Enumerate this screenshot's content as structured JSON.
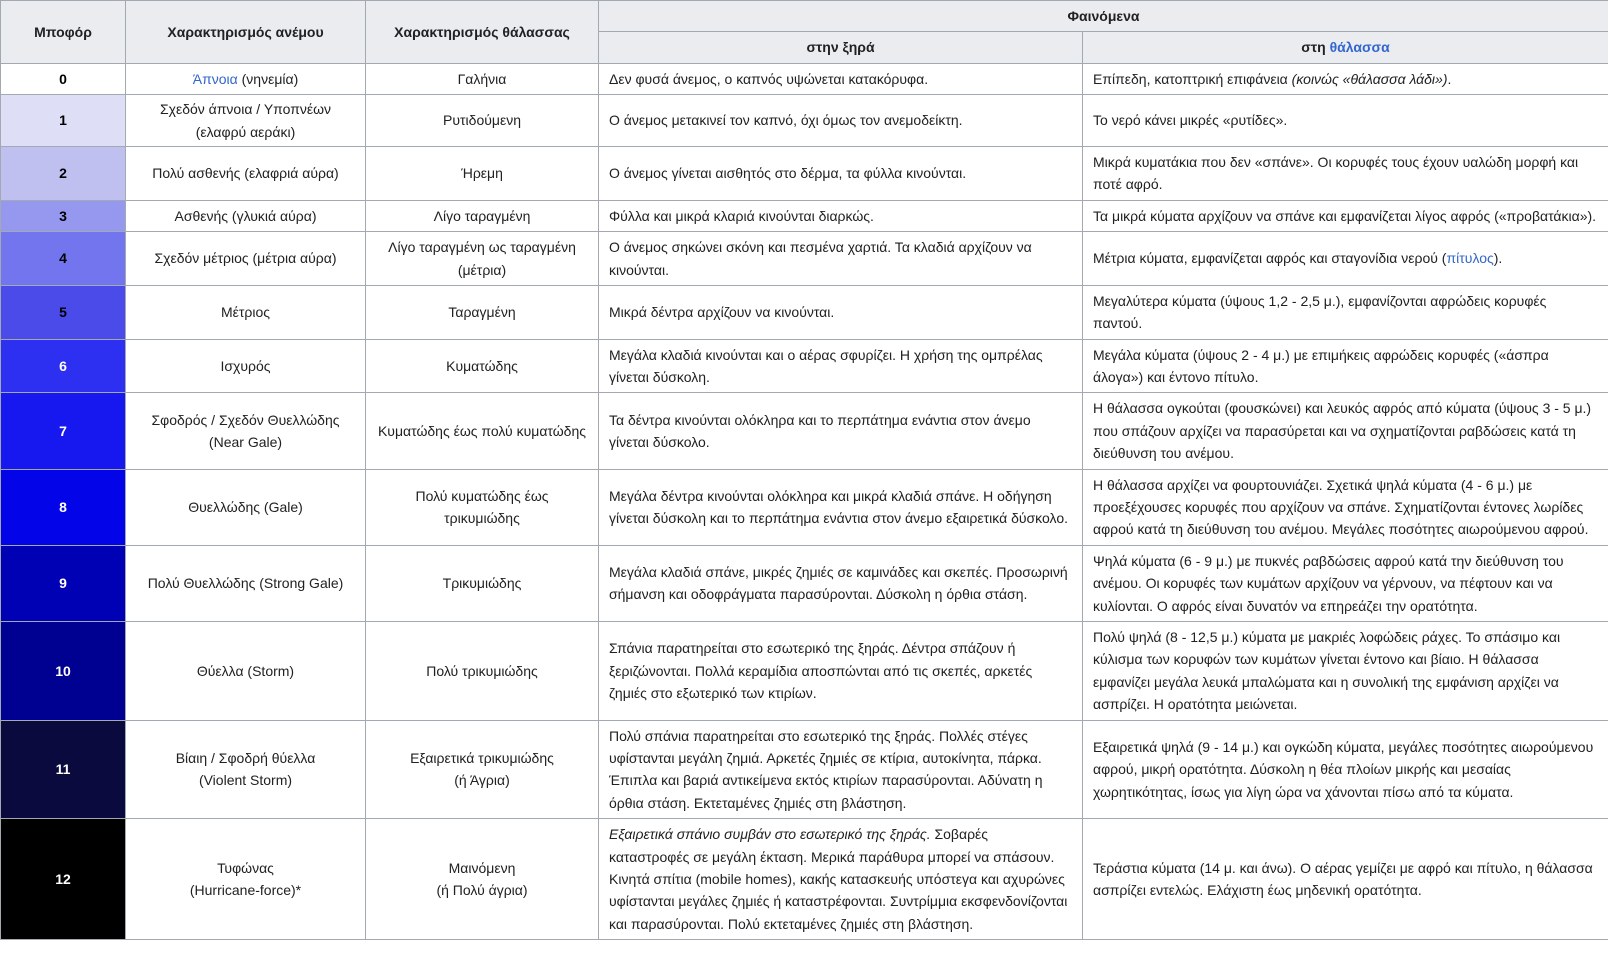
{
  "table": {
    "link_color": "#3366cc",
    "border_color": "#a2a9b1",
    "header_bg": "#eaecf0",
    "header": {
      "beaufort": "Μποφόρ",
      "wind": "Χαρακτηρισμός ανέμου",
      "sea": "Χαρακτηρισμός θάλασσας",
      "phenomena": "Φαινόμενα",
      "sub_land": "στην ξηρά",
      "sub_sea_prefix": "στη",
      "sub_sea_link": "θάλασσα"
    },
    "rows": [
      {
        "n": "0",
        "bg": "#ffffff",
        "fg": "#000000",
        "wind": [
          {
            "s": "link",
            "v": "Άπνοια",
            "name": "apnoia-link"
          },
          {
            "s": "text",
            "v": " (νηνεμία)"
          }
        ],
        "sea": [
          {
            "s": "text",
            "v": "Γαλήνια"
          }
        ],
        "land": [
          {
            "s": "text",
            "v": "Δεν φυσά άνεμος, ο καπνός υψώνεται κατακόρυφα."
          }
        ],
        "seadesc": [
          {
            "s": "text",
            "v": "Επίπεδη, κατοπτρική επιφάνεια "
          },
          {
            "s": "em",
            "v": "(κοινώς «θάλασσα λάδι»)"
          },
          {
            "s": "text",
            "v": "."
          }
        ]
      },
      {
        "n": "1",
        "bg": "#dedff7",
        "fg": "#000000",
        "wind": [
          {
            "s": "text",
            "v": "Σχεδόν άπνοια / Υποπνέων (ελαφρύ αεράκι)"
          }
        ],
        "sea": [
          {
            "s": "text",
            "v": "Ρυτιδούμενη"
          }
        ],
        "land": [
          {
            "s": "text",
            "v": "Ο άνεμος μετακινεί τον καπνό, όχι όμως τον ανεμοδείκτη."
          }
        ],
        "seadesc": [
          {
            "s": "text",
            "v": "Το νερό κάνει μικρές «ρυτίδες»."
          }
        ]
      },
      {
        "n": "2",
        "bg": "#bfc0ef",
        "fg": "#000000",
        "wind": [
          {
            "s": "text",
            "v": "Πολύ ασθενής (ελαφριά αύρα)"
          }
        ],
        "sea": [
          {
            "s": "text",
            "v": "Ήρεμη"
          }
        ],
        "land": [
          {
            "s": "text",
            "v": "Ο άνεμος γίνεται αισθητός στο δέρμα, τα φύλλα κινούνται."
          }
        ],
        "seadesc": [
          {
            "s": "text",
            "v": "Μικρά κυματάκια που δεν «σπάνε». Οι κορυφές τους έχουν υαλώδη μορφή και ποτέ αφρό."
          }
        ]
      },
      {
        "n": "3",
        "bg": "#9697ee",
        "fg": "#000000",
        "wind": [
          {
            "s": "text",
            "v": "Ασθενής (γλυκιά αύρα)"
          }
        ],
        "sea": [
          {
            "s": "text",
            "v": "Λίγο ταραγμένη"
          }
        ],
        "land": [
          {
            "s": "text",
            "v": "Φύλλα και μικρά κλαριά κινούνται διαρκώς."
          }
        ],
        "seadesc": [
          {
            "s": "text",
            "v": "Τα μικρά κύματα αρχίζουν να σπάνε και εμφανίζεται λίγος αφρός («προβατάκια»)."
          }
        ]
      },
      {
        "n": "4",
        "bg": "#7375ee",
        "fg": "#000000",
        "wind": [
          {
            "s": "text",
            "v": "Σχεδόν μέτριος (μέτρια αύρα)"
          }
        ],
        "sea": [
          {
            "s": "text",
            "v": "Λίγο ταραγμένη ως ταραγμένη\n(μέτρια)"
          }
        ],
        "land": [
          {
            "s": "text",
            "v": "Ο άνεμος σηκώνει σκόνη και πεσμένα χαρτιά. Τα κλαδιά αρχίζουν να κινούνται."
          }
        ],
        "seadesc": [
          {
            "s": "text",
            "v": "Μέτρια κύματα, εμφανίζεται αφρός και σταγονίδια νερού ("
          },
          {
            "s": "link",
            "v": "πίτυλος",
            "name": "pitylos-link"
          },
          {
            "s": "text",
            "v": ")."
          }
        ]
      },
      {
        "n": "5",
        "bg": "#4a4be8",
        "fg": "#000000",
        "wind": [
          {
            "s": "text",
            "v": "Μέτριος"
          }
        ],
        "sea": [
          {
            "s": "text",
            "v": "Ταραγμένη"
          }
        ],
        "land": [
          {
            "s": "text",
            "v": "Μικρά δέντρα αρχίζουν να κινούνται."
          }
        ],
        "seadesc": [
          {
            "s": "text",
            "v": "Μεγαλύτερα κύματα (ύψους 1,2 - 2,5 μ.), εμφανίζονται αφρώδεις κορυφές παντού."
          }
        ]
      },
      {
        "n": "6",
        "bg": "#2e30f1",
        "fg": "#ffffff",
        "wind": [
          {
            "s": "text",
            "v": "Ισχυρός"
          }
        ],
        "sea": [
          {
            "s": "text",
            "v": "Κυματώδης"
          }
        ],
        "land": [
          {
            "s": "text",
            "v": "Μεγάλα κλαδιά κινούνται και ο αέρας σφυρίζει. Η χρήση της ομπρέλας γίνεται δύσκολη."
          }
        ],
        "seadesc": [
          {
            "s": "text",
            "v": "Μεγάλα κύματα (ύψους 2 - 4 μ.) με επιμήκεις αφρώδεις κορυφές («άσπρα άλογα») και έντονο πίτυλο."
          }
        ]
      },
      {
        "n": "7",
        "bg": "#1718f0",
        "fg": "#ffffff",
        "wind": [
          {
            "s": "text",
            "v": "Σφοδρός / Σχεδόν Θυελλώδης\n(Near Gale)"
          }
        ],
        "sea": [
          {
            "s": "text",
            "v": "Κυματώδης έως πολύ κυματώδης"
          }
        ],
        "land": [
          {
            "s": "text",
            "v": "Τα δέντρα κινούνται ολόκληρα και το περπάτημα ενάντια στον άνεμο γίνεται δύσκολο."
          }
        ],
        "seadesc": [
          {
            "s": "text",
            "v": "Η θάλασσα ογκούται (φουσκώνει) και λευκός αφρός από κύματα (ύψους 3 - 5 μ.) που σπάζουν αρχίζει να παρασύρεται και να σχηματίζονται ραβδώσεις κατά τη διεύθυνση του ανέμου."
          }
        ]
      },
      {
        "n": "8",
        "bg": "#0404e8",
        "fg": "#ffffff",
        "wind": [
          {
            "s": "text",
            "v": "Θυελλώδης (Gale)"
          }
        ],
        "sea": [
          {
            "s": "text",
            "v": "Πολύ κυματώδης έως τρικυμιώδης"
          }
        ],
        "land": [
          {
            "s": "text",
            "v": "Μεγάλα δέντρα κινούνται ολόκληρα και μικρά κλαδιά σπάνε. Η οδήγηση γίνεται δύσκολη και το περπάτημα ενάντια στον άνεμο εξαιρετικά δύσκολο."
          }
        ],
        "seadesc": [
          {
            "s": "text",
            "v": "Η θάλασσα αρχίζει να φουρτουνιάζει. Σχετικά ψηλά κύματα (4 - 6 μ.) με προεξέχουσες κορυφές που αρχίζουν να σπάνε. Σχηματίζονται έντονες λωρίδες αφρού κατά τη διεύθυνση του ανέμου. Μεγάλες ποσότητες αιωρούμενου αφρού."
          }
        ]
      },
      {
        "n": "9",
        "bg": "#0000b5",
        "fg": "#ffffff",
        "wind": [
          {
            "s": "text",
            "v": "Πολύ Θυελλώδης (Strong Gale)"
          }
        ],
        "sea": [
          {
            "s": "text",
            "v": "Τρικυμιώδης"
          }
        ],
        "land": [
          {
            "s": "text",
            "v": "Μεγάλα κλαδιά σπάνε, μικρές ζημιές σε καμινάδες και σκεπές. Προσωρινή σήμανση και οδοφράγματα παρασύρονται. Δύσκολη η όρθια στάση."
          }
        ],
        "seadesc": [
          {
            "s": "text",
            "v": "Ψηλά κύματα (6 - 9 μ.) με πυκνές ραβδώσεις αφρού κατά την διεύθυνση του ανέμου. Οι κορυφές των κυμάτων αρχίζουν να γέρνουν, να πέφτουν και να κυλίονται. Ο αφρός είναι δυνατόν να επηρεάζει την ορατότητα."
          }
        ]
      },
      {
        "n": "10",
        "bg": "#000091",
        "fg": "#ffffff",
        "wind": [
          {
            "s": "text",
            "v": "Θύελλα (Storm)"
          }
        ],
        "sea": [
          {
            "s": "text",
            "v": "Πολύ τρικυμιώδης"
          }
        ],
        "land": [
          {
            "s": "text",
            "v": "Σπάνια παρατηρείται στο εσωτερικό της ξηράς. Δέντρα σπάζουν ή ξεριζώνονται. Πολλά κεραμίδια αποσπώνται από τις σκεπές, αρκετές ζημιές στο εξωτερικό των κτιρίων."
          }
        ],
        "seadesc": [
          {
            "s": "text",
            "v": "Πολύ ψηλά (8 - 12,5 μ.) κύματα με μακριές λοφώδεις ράχες. Το σπάσιμο και κύλισμα των κορυφών των κυμάτων γίνεται έντονο και βίαιο. Η θάλασσα εμφανίζει μεγάλα λευκά μπαλώματα και η συνολική της εμφάνιση αρχίζει να ασπρίζει. Η ορατότητα μειώνεται."
          }
        ]
      },
      {
        "n": "11",
        "bg": "#0a0a3f",
        "fg": "#ffffff",
        "wind": [
          {
            "s": "text",
            "v": "Βίαιη / Σφοδρή θύελλα\n(Violent Storm)"
          }
        ],
        "sea": [
          {
            "s": "text",
            "v": "Εξαιρετικά τρικυμιώδης\n(ή Άγρια)"
          }
        ],
        "land": [
          {
            "s": "text",
            "v": "Πολύ σπάνια παρατηρείται στο εσωτερικό της ξηράς. Πολλές στέγες υφίστανται μεγάλη ζημιά. Αρκετές ζημιές σε κτίρια, αυτοκίνητα, πάρκα. Έπιπλα και βαριά αντικείμενα εκτός κτιρίων παρασύρονται. Αδύνατη η όρθια στάση. Εκτεταμένες ζημιές στη βλάστηση."
          }
        ],
        "seadesc": [
          {
            "s": "text",
            "v": "Εξαιρετικά ψηλά (9 - 14 μ.) και ογκώδη κύματα, μεγάλες ποσότητες αιωρούμενου αφρού, μικρή ορατότητα. Δύσκολη η θέα πλοίων μικρής και μεσαίας χωρητικότητας, ίσως για λίγη ώρα να χάνονται πίσω από τα κύματα."
          }
        ]
      },
      {
        "n": "12",
        "bg": "#000000",
        "fg": "#ffffff",
        "wind": [
          {
            "s": "text",
            "v": "Τυφώνας\n(Hurricane-force)*"
          }
        ],
        "sea": [
          {
            "s": "text",
            "v": "Μαινόμενη\n(ή Πολύ άγρια)"
          }
        ],
        "land": [
          {
            "s": "em",
            "v": "Εξαιρετικά σπάνιο συμβάν στο εσωτερικό της ξηράς."
          },
          {
            "s": "text",
            "v": " Σοβαρές καταστροφές σε μεγάλη έκταση. Μερικά παράθυρα μπορεί να σπάσουν. Κινητά σπίτια (mobile homes), κακής κατασκευής υπόστεγα και αχυρώνες υφίστανται μεγάλες ζημιές ή καταστρέφονται. Συντρίμμια εκσφενδονίζονται και παρασύρονται. Πολύ εκτεταμένες ζημιές στη βλάστηση."
          }
        ],
        "seadesc": [
          {
            "s": "text",
            "v": "Τεράστια κύματα (14 μ. και άνω). Ο αέρας γεμίζει με αφρό και πίτυλο, η θάλασσα ασπρίζει εντελώς. Ελάχιστη έως μηδενική ορατότητα."
          }
        ]
      }
    ]
  }
}
